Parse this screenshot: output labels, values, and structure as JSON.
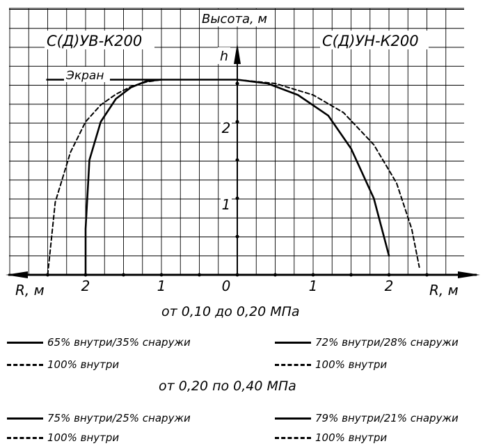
{
  "chart_data": {
    "type": "line",
    "title": "",
    "y_axis_label": "Высота, м",
    "y_axis_symbol": "h",
    "x_axis_label_left": "R, м",
    "x_axis_label_right": "R, м",
    "x_tick_labels": [
      "2",
      "1",
      "0",
      "1",
      "2"
    ],
    "x_ticks": [
      -2,
      -1,
      0,
      1,
      2
    ],
    "y_tick_labels": [
      "1",
      "2"
    ],
    "y_ticks": [
      1,
      2
    ],
    "xlim": [
      -2.8,
      2.8
    ],
    "ylim": [
      0,
      2.6
    ],
    "grid": true,
    "panel_left_label": "С(Д)УВ-К200",
    "panel_right_label": "С(Д)УН-К200",
    "screen_label": "Экран",
    "screen": {
      "x": [
        -2.5,
        0
      ],
      "y": 2.55
    },
    "series": [
      {
        "side": "left",
        "style": "solid",
        "x": [
          -2.0,
          -2.0,
          -1.95,
          -1.8,
          -1.6,
          -1.4,
          -1.2,
          -1.0
        ],
        "y": [
          0,
          0.6,
          1.5,
          2.0,
          2.3,
          2.45,
          2.53,
          2.55
        ]
      },
      {
        "side": "left",
        "style": "dashed",
        "x": [
          -2.5,
          -2.4,
          -2.2,
          -2.0,
          -1.8,
          -1.6,
          -1.4,
          -1.2,
          -1.0
        ],
        "y": [
          0,
          0.95,
          1.6,
          2.0,
          2.22,
          2.36,
          2.46,
          2.52,
          2.55
        ]
      },
      {
        "side": "right",
        "style": "solid",
        "x": [
          0,
          0.4,
          0.8,
          1.2,
          1.5,
          1.8,
          2.0
        ],
        "y": [
          2.55,
          2.5,
          2.35,
          2.08,
          1.65,
          1.0,
          0.25
        ]
      },
      {
        "side": "right",
        "style": "dashed",
        "x": [
          0,
          0.5,
          1.0,
          1.4,
          1.8,
          2.1,
          2.3,
          2.4
        ],
        "y": [
          2.55,
          2.5,
          2.35,
          2.12,
          1.7,
          1.2,
          0.6,
          0.1
        ]
      }
    ]
  },
  "sections": [
    {
      "heading": "от 0,10 до 0,20 МПа",
      "left_solid": "65% внутри/35% снаружи",
      "left_dashed": "100% внутри",
      "right_solid": "72% внутри/28% снаружи",
      "right_dashed": "100% внутри"
    },
    {
      "heading": "от 0,20 по 0,40 МПа",
      "left_solid": "75% внутри/25% снаружи",
      "left_dashed": "100% внутри",
      "right_solid": "79% внутри/21% снаружи",
      "right_dashed": "100% внутри"
    }
  ]
}
